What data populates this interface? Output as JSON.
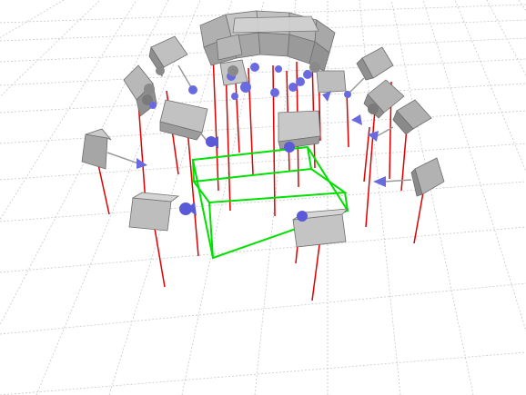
{
  "viewport": {
    "kind": "3d-scene-render",
    "background_color": "#ffffff",
    "grid_color": "#c8c8c8",
    "marker_color": "#e00000",
    "bounding_box_color": "#00e000",
    "camera_body_color": "#a9a9a9",
    "lens_color": "#6a6ae0",
    "camera_count": 16,
    "ring_segment_count": 12
  }
}
